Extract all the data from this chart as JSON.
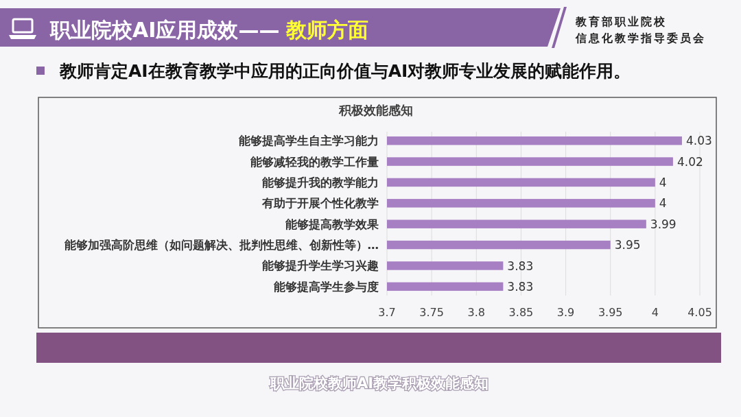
{
  "chart_data": {
    "type": "bar",
    "orientation": "horizontal",
    "title": "积极效能感知",
    "subtitle": "教师肯定AI在教育教学中应用的正向价值与AI对教师专业发展的赋能作用。",
    "categories": [
      "能够提高学生自主学习能力",
      "能够减轻我的教学工作量",
      "能够提升我的教学能力",
      "有助于开展个性化教学",
      "能够提高教学效果",
      "能够加强高阶思维（如问题解决、批判性思维、创新性等）…",
      "能够提升学生学习兴趣",
      "能够提高学生参与度"
    ],
    "values": [
      4.03,
      4.02,
      4,
      4,
      3.99,
      3.95,
      3.83,
      3.83
    ],
    "color": "#a77fc3",
    "xlim": [
      3.7,
      4.05
    ],
    "xticks": [
      3.7,
      3.75,
      3.8,
      3.85,
      3.9,
      3.95,
      4,
      4.05
    ],
    "grid": "x",
    "data_labels": true,
    "annotations": [
      "职业院校AI应用成效——",
      "教师方面",
      "教育部职业院校",
      "信息化教学指导委员会",
      "职业院校教师AI教学积极效能感知"
    ]
  }
}
